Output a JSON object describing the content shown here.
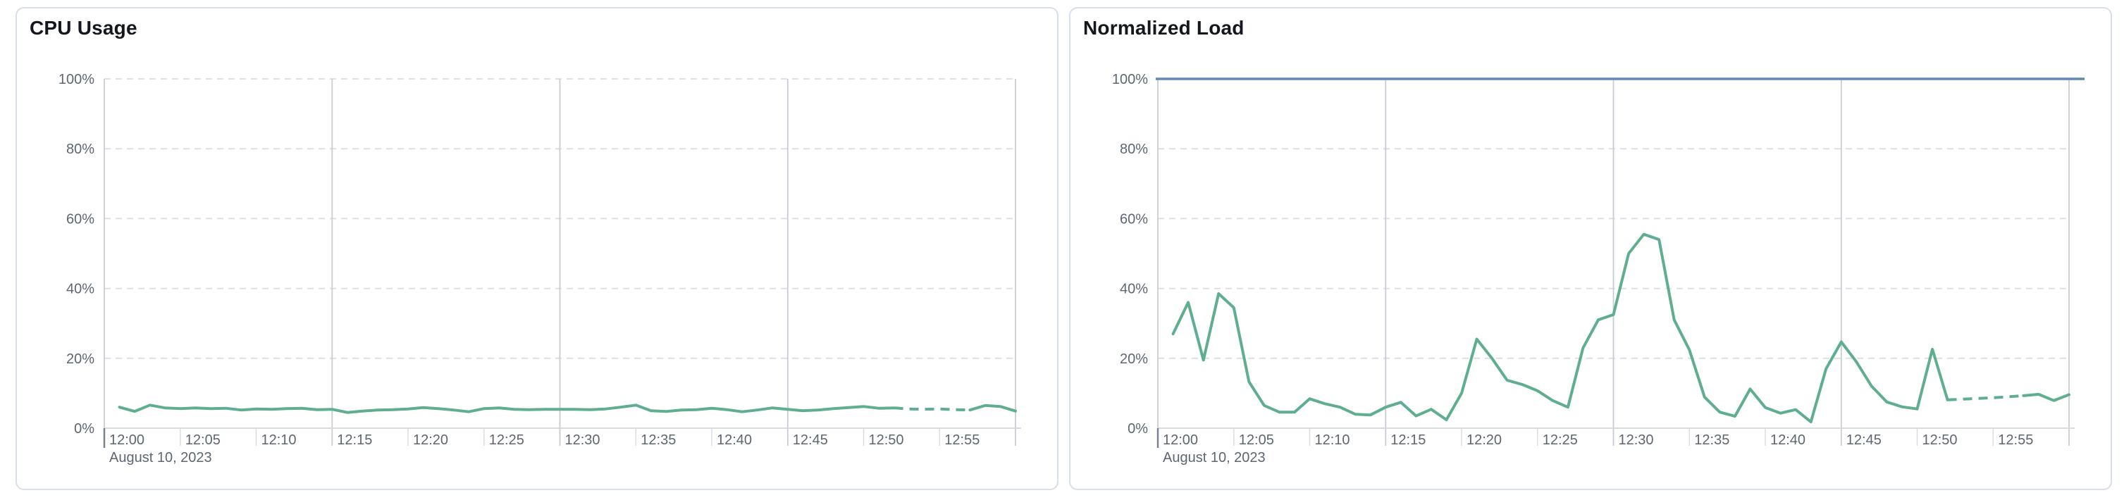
{
  "page": {
    "background": "#ffffff",
    "panel_background": "#ffffff",
    "panel_border_color": "#d9dfe9"
  },
  "palette": {
    "series_green": "#5fae8f",
    "reference_blue": "#6189b5",
    "grid_dashed": "#dadde4",
    "grid_vertical": "#c9ccd2",
    "axis_line": "#d4d7dc",
    "tick_minor": "#dadce1",
    "tick_origin": "#7a8190",
    "label_color": "#5e6673",
    "title_color": "#14171d"
  },
  "chart_data": [
    {
      "type": "line",
      "title": "CPU Usage",
      "date_label": "August 10, 2023",
      "x_tick_labels": [
        "12:00",
        "12:05",
        "12:10",
        "12:15",
        "12:20",
        "12:25",
        "12:30",
        "12:35",
        "12:40",
        "12:45",
        "12:50",
        "12:55"
      ],
      "y_tick_labels": [
        "0%",
        "20%",
        "40%",
        "60%",
        "80%",
        "100%"
      ],
      "ylim": [
        0,
        100
      ],
      "x_range_minutes": [
        0,
        60
      ],
      "points_start_minute": 1,
      "point_interval_minutes": 1,
      "major_gridline_minutes": [
        15,
        30,
        45,
        60
      ],
      "dashed_segment_minutes": [
        52,
        57
      ],
      "legend": "none",
      "grid": "on",
      "series": [
        {
          "name": "cpu-usage",
          "color": "#5fae8f",
          "values": [
            6.0,
            4.8,
            6.6,
            5.8,
            5.6,
            5.8,
            5.6,
            5.7,
            5.2,
            5.5,
            5.4,
            5.6,
            5.7,
            5.3,
            5.4,
            4.5,
            4.9,
            5.2,
            5.3,
            5.5,
            5.9,
            5.6,
            5.2,
            4.7,
            5.6,
            5.8,
            5.4,
            5.3,
            5.4,
            5.4,
            5.4,
            5.3,
            5.5,
            6.0,
            6.6,
            5.0,
            4.8,
            5.2,
            5.3,
            5.7,
            5.3,
            4.7,
            5.2,
            5.8,
            5.4,
            5.0,
            5.2,
            5.6,
            5.9,
            6.2,
            5.7,
            5.8,
            5.5,
            5.4,
            5.5,
            5.3,
            5.2,
            6.5,
            6.2,
            4.9
          ]
        }
      ],
      "reference_lines": []
    },
    {
      "type": "line",
      "title": "Normalized Load",
      "date_label": "August 10, 2023",
      "x_tick_labels": [
        "12:00",
        "12:05",
        "12:10",
        "12:15",
        "12:20",
        "12:25",
        "12:30",
        "12:35",
        "12:40",
        "12:45",
        "12:50",
        "12:55"
      ],
      "y_tick_labels": [
        "0%",
        "20%",
        "40%",
        "60%",
        "80%",
        "100%"
      ],
      "ylim": [
        0,
        100
      ],
      "x_range_minutes": [
        0,
        60
      ],
      "points_start_minute": 1,
      "point_interval_minutes": 1,
      "major_gridline_minutes": [
        15,
        30,
        45,
        60
      ],
      "dashed_segment_minutes": [
        52,
        57
      ],
      "legend": "none",
      "grid": "on",
      "series": [
        {
          "name": "normalized-load",
          "color": "#5fae8f",
          "values": [
            27,
            36,
            19.5,
            38.5,
            34.5,
            13.3,
            6.5,
            4.6,
            4.6,
            8.4,
            7,
            6,
            4,
            3.8,
            6,
            7.4,
            3.5,
            5.4,
            2.4,
            10,
            25.5,
            20,
            13.7,
            12.5,
            10.7,
            7.9,
            6,
            23,
            31,
            32.5,
            50,
            55.5,
            54,
            31,
            22.4,
            8.9,
            4.6,
            3.4,
            11.2,
            5.9,
            4.3,
            5.3,
            1.8,
            17,
            24.7,
            19,
            12,
            7.5,
            6.1,
            5.5,
            22.6,
            8.1,
            8.3,
            8.5,
            8.7,
            9,
            9.3,
            9.7,
            7.9,
            9.6
          ]
        }
      ],
      "reference_lines": [
        {
          "name": "load-limit-100",
          "value": 100,
          "color": "#6189b5"
        }
      ]
    }
  ]
}
